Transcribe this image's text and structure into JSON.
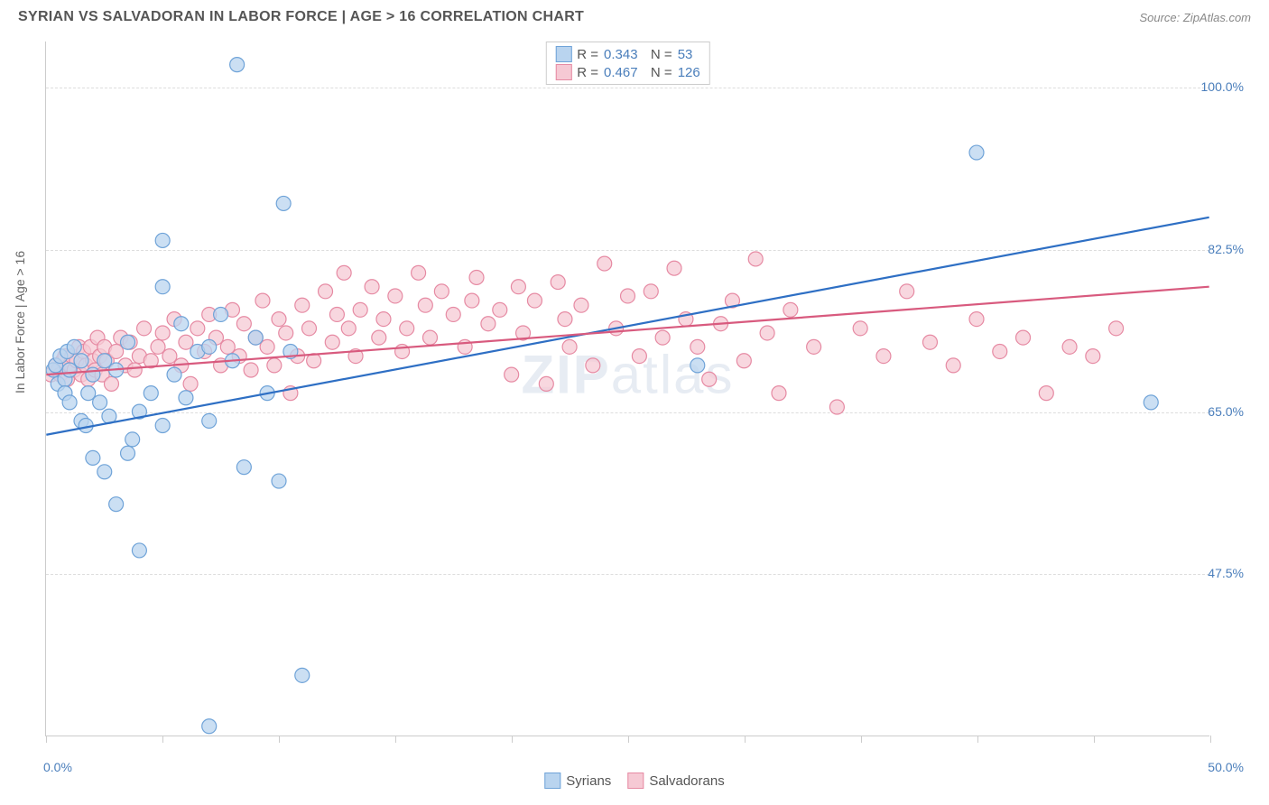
{
  "header": {
    "title": "SYRIAN VS SALVADORAN IN LABOR FORCE | AGE > 16 CORRELATION CHART",
    "source": "Source: ZipAtlas.com"
  },
  "watermark": "ZIPatlas",
  "chart": {
    "type": "scatter",
    "ylabel": "In Labor Force | Age > 16",
    "xlim": [
      0,
      50
    ],
    "ylim": [
      30,
      105
    ],
    "xtick_positions": [
      0,
      5,
      10,
      15,
      20,
      25,
      30,
      35,
      40,
      45,
      50
    ],
    "xtick_labels": {
      "0": "0.0%",
      "50": "50.0%"
    },
    "ytick_positions": [
      47.5,
      65.0,
      82.5,
      100.0
    ],
    "ytick_labels": [
      "47.5%",
      "65.0%",
      "82.5%",
      "100.0%"
    ],
    "background_color": "#ffffff",
    "grid_color": "#dddddd",
    "axis_color": "#cccccc",
    "label_color": "#666666",
    "value_color": "#4a7ebb",
    "series": [
      {
        "name": "Syrians",
        "R": "0.343",
        "N": "53",
        "marker_fill": "#b9d4ef",
        "marker_stroke": "#6fa3d8",
        "line_color": "#2e6fc4",
        "line": {
          "x1": 0,
          "y1": 62.5,
          "x2": 50,
          "y2": 86
        },
        "points": [
          [
            0.3,
            69.5
          ],
          [
            0.4,
            70.0
          ],
          [
            0.5,
            68.0
          ],
          [
            0.6,
            71.0
          ],
          [
            0.8,
            68.5
          ],
          [
            0.8,
            67.0
          ],
          [
            0.9,
            71.5
          ],
          [
            1.0,
            69.5
          ],
          [
            1.0,
            66.0
          ],
          [
            1.2,
            72.0
          ],
          [
            1.5,
            70.5
          ],
          [
            1.5,
            64.0
          ],
          [
            1.7,
            63.5
          ],
          [
            1.8,
            67.0
          ],
          [
            2.0,
            69.0
          ],
          [
            2.0,
            60.0
          ],
          [
            2.3,
            66.0
          ],
          [
            2.5,
            70.5
          ],
          [
            2.5,
            58.5
          ],
          [
            2.7,
            64.5
          ],
          [
            3.0,
            69.5
          ],
          [
            3.0,
            55.0
          ],
          [
            3.5,
            72.5
          ],
          [
            3.5,
            60.5
          ],
          [
            3.7,
            62.0
          ],
          [
            4.0,
            65.0
          ],
          [
            4.0,
            50.0
          ],
          [
            4.5,
            67.0
          ],
          [
            5.0,
            78.5
          ],
          [
            5.0,
            63.5
          ],
          [
            5.0,
            83.5
          ],
          [
            5.5,
            69.0
          ],
          [
            5.8,
            74.5
          ],
          [
            6.0,
            66.5
          ],
          [
            6.5,
            71.5
          ],
          [
            7.0,
            72.0
          ],
          [
            7.0,
            64.0
          ],
          [
            7.0,
            31.0
          ],
          [
            7.5,
            75.5
          ],
          [
            8.0,
            70.5
          ],
          [
            8.2,
            102.5
          ],
          [
            8.5,
            59.0
          ],
          [
            9.0,
            73.0
          ],
          [
            9.5,
            67.0
          ],
          [
            10.0,
            57.5
          ],
          [
            10.2,
            87.5
          ],
          [
            10.5,
            71.5
          ],
          [
            11.0,
            36.5
          ],
          [
            27.0,
            101.5
          ],
          [
            28.0,
            70.0
          ],
          [
            40.0,
            93.0
          ],
          [
            47.5,
            66.0
          ]
        ]
      },
      {
        "name": "Salvadorans",
        "R": "0.467",
        "N": "126",
        "marker_fill": "#f6c9d4",
        "marker_stroke": "#e68aa3",
        "line_color": "#d85a7e",
        "line": {
          "x1": 0,
          "y1": 69,
          "x2": 50,
          "y2": 78.5
        },
        "points": [
          [
            0.2,
            69.0
          ],
          [
            0.4,
            70.0
          ],
          [
            0.5,
            69.5
          ],
          [
            0.6,
            69.0
          ],
          [
            0.7,
            70.5
          ],
          [
            0.8,
            71.0
          ],
          [
            0.9,
            68.5
          ],
          [
            1.0,
            70.0
          ],
          [
            1.1,
            71.0
          ],
          [
            1.2,
            69.5
          ],
          [
            1.3,
            70.5
          ],
          [
            1.4,
            72.0
          ],
          [
            1.5,
            69.0
          ],
          [
            1.6,
            71.5
          ],
          [
            1.7,
            70.0
          ],
          [
            1.8,
            68.5
          ],
          [
            1.9,
            72.0
          ],
          [
            2.0,
            70.5
          ],
          [
            2.1,
            69.5
          ],
          [
            2.2,
            73.0
          ],
          [
            2.3,
            71.0
          ],
          [
            2.4,
            69.0
          ],
          [
            2.5,
            72.0
          ],
          [
            2.6,
            70.5
          ],
          [
            2.8,
            68.0
          ],
          [
            3.0,
            71.5
          ],
          [
            3.2,
            73.0
          ],
          [
            3.4,
            70.0
          ],
          [
            3.6,
            72.5
          ],
          [
            3.8,
            69.5
          ],
          [
            4.0,
            71.0
          ],
          [
            4.2,
            74.0
          ],
          [
            4.5,
            70.5
          ],
          [
            4.8,
            72.0
          ],
          [
            5.0,
            73.5
          ],
          [
            5.3,
            71.0
          ],
          [
            5.5,
            75.0
          ],
          [
            5.8,
            70.0
          ],
          [
            6.0,
            72.5
          ],
          [
            6.2,
            68.0
          ],
          [
            6.5,
            74.0
          ],
          [
            6.8,
            71.5
          ],
          [
            7.0,
            75.5
          ],
          [
            7.3,
            73.0
          ],
          [
            7.5,
            70.0
          ],
          [
            7.8,
            72.0
          ],
          [
            8.0,
            76.0
          ],
          [
            8.3,
            71.0
          ],
          [
            8.5,
            74.5
          ],
          [
            8.8,
            69.5
          ],
          [
            9.0,
            73.0
          ],
          [
            9.3,
            77.0
          ],
          [
            9.5,
            72.0
          ],
          [
            9.8,
            70.0
          ],
          [
            10.0,
            75.0
          ],
          [
            10.3,
            73.5
          ],
          [
            10.5,
            67.0
          ],
          [
            10.8,
            71.0
          ],
          [
            11.0,
            76.5
          ],
          [
            11.3,
            74.0
          ],
          [
            11.5,
            70.5
          ],
          [
            12.0,
            78.0
          ],
          [
            12.3,
            72.5
          ],
          [
            12.5,
            75.5
          ],
          [
            12.8,
            80.0
          ],
          [
            13.0,
            74.0
          ],
          [
            13.3,
            71.0
          ],
          [
            13.5,
            76.0
          ],
          [
            14.0,
            78.5
          ],
          [
            14.3,
            73.0
          ],
          [
            14.5,
            75.0
          ],
          [
            15.0,
            77.5
          ],
          [
            15.3,
            71.5
          ],
          [
            15.5,
            74.0
          ],
          [
            16.0,
            80.0
          ],
          [
            16.3,
            76.5
          ],
          [
            16.5,
            73.0
          ],
          [
            17.0,
            78.0
          ],
          [
            17.5,
            75.5
          ],
          [
            18.0,
            72.0
          ],
          [
            18.3,
            77.0
          ],
          [
            18.5,
            79.5
          ],
          [
            19.0,
            74.5
          ],
          [
            19.5,
            76.0
          ],
          [
            20.0,
            69.0
          ],
          [
            20.3,
            78.5
          ],
          [
            20.5,
            73.5
          ],
          [
            21.0,
            77.0
          ],
          [
            21.5,
            68.0
          ],
          [
            22.0,
            79.0
          ],
          [
            22.3,
            75.0
          ],
          [
            22.5,
            72.0
          ],
          [
            23.0,
            76.5
          ],
          [
            23.5,
            70.0
          ],
          [
            24.0,
            81.0
          ],
          [
            24.5,
            74.0
          ],
          [
            25.0,
            77.5
          ],
          [
            25.5,
            71.0
          ],
          [
            26.0,
            78.0
          ],
          [
            26.5,
            73.0
          ],
          [
            27.0,
            80.5
          ],
          [
            27.5,
            75.0
          ],
          [
            28.0,
            72.0
          ],
          [
            28.5,
            68.5
          ],
          [
            29.0,
            74.5
          ],
          [
            29.5,
            77.0
          ],
          [
            30.0,
            70.5
          ],
          [
            30.5,
            81.5
          ],
          [
            31.0,
            73.5
          ],
          [
            31.5,
            67.0
          ],
          [
            32.0,
            76.0
          ],
          [
            33.0,
            72.0
          ],
          [
            34.0,
            65.5
          ],
          [
            35.0,
            74.0
          ],
          [
            36.0,
            71.0
          ],
          [
            37.0,
            78.0
          ],
          [
            38.0,
            72.5
          ],
          [
            39.0,
            70.0
          ],
          [
            40.0,
            75.0
          ],
          [
            41.0,
            71.5
          ],
          [
            42.0,
            73.0
          ],
          [
            43.0,
            67.0
          ],
          [
            44.0,
            72.0
          ],
          [
            45.0,
            71.0
          ],
          [
            46.0,
            74.0
          ]
        ]
      }
    ]
  }
}
